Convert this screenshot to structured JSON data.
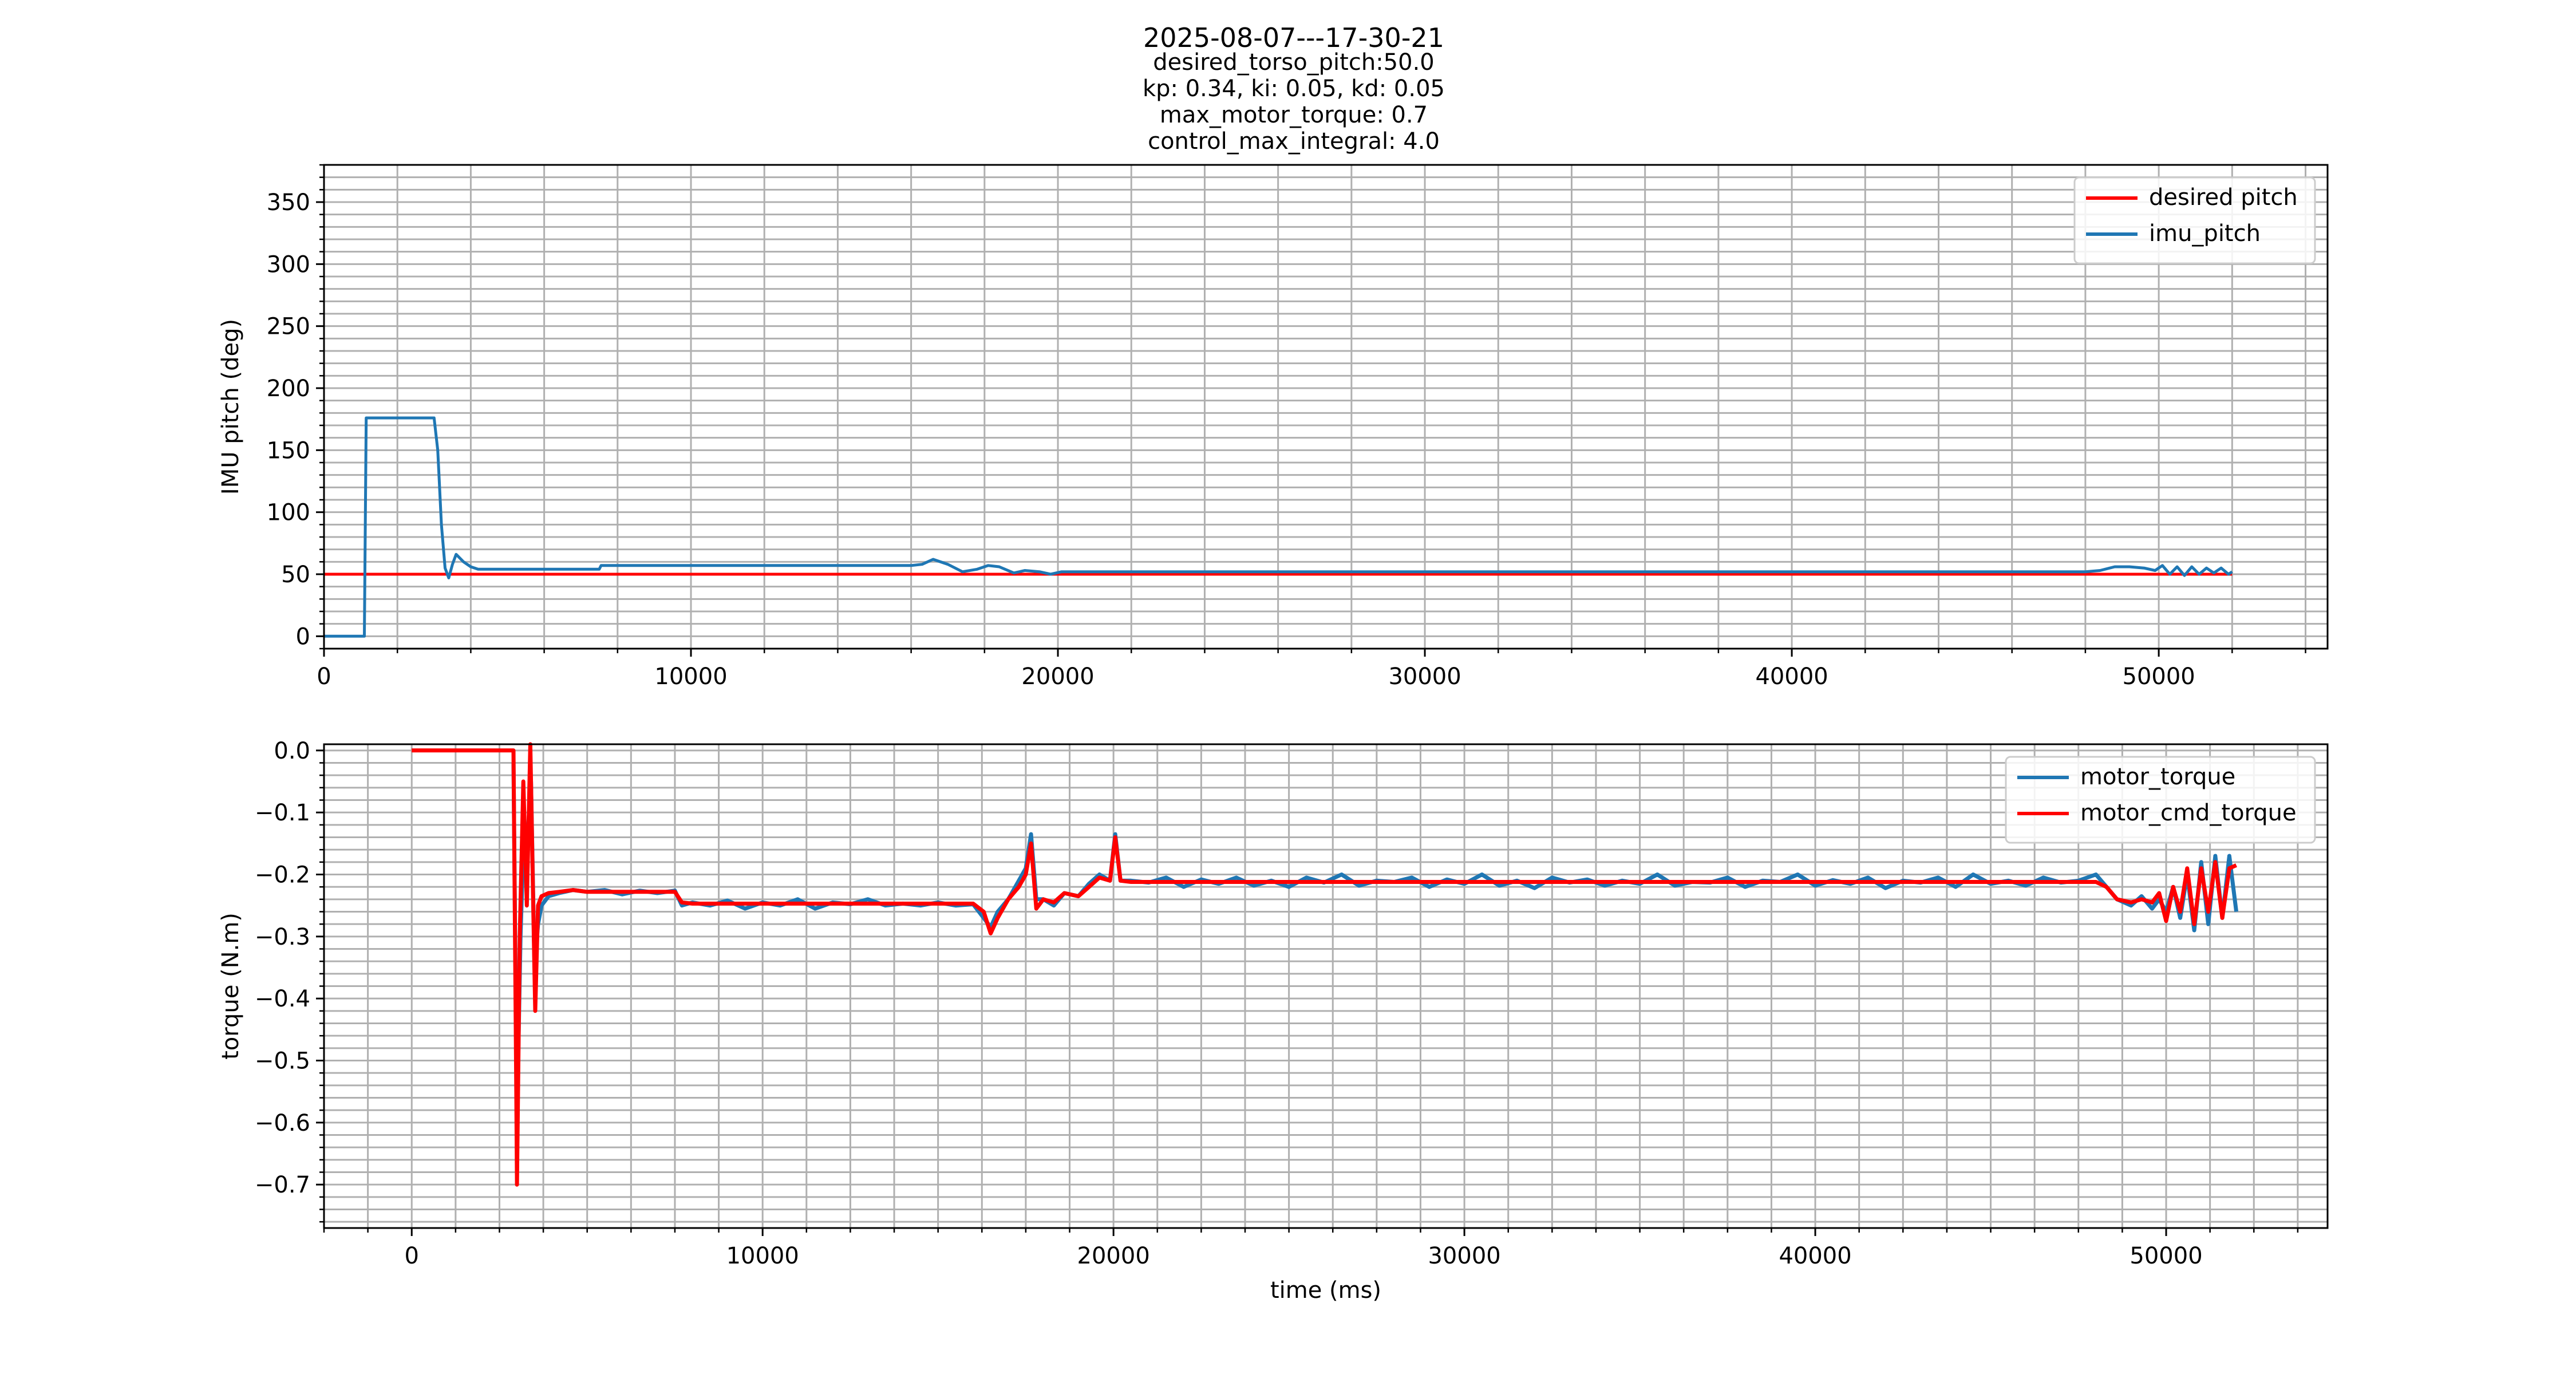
{
  "title": "2025-08-07---17-30-21",
  "subtitle_lines": [
    "desired_torso_pitch:50.0",
    "kp: 0.34, ki: 0.05, kd: 0.05",
    "max_motor_torque: 0.7",
    "control_max_integral: 4.0"
  ],
  "colors": {
    "blue": "#1f77b4",
    "red": "#ff0000",
    "grid": "#b0b0b0"
  },
  "chart_data": [
    {
      "type": "line",
      "ylabel": "IMU pitch (deg)",
      "xlabel": "",
      "xlim": [
        0,
        54600
      ],
      "ylim": [
        -10,
        380
      ],
      "grid": true,
      "minor_grid": true,
      "legend_placement": "top-right",
      "xticks": [
        0,
        10000,
        20000,
        30000,
        40000,
        50000
      ],
      "yticks": [
        0,
        50,
        100,
        150,
        200,
        250,
        300,
        350
      ],
      "series": [
        {
          "name": "desired pitch",
          "color": "#ff0000",
          "x": [
            0,
            52000
          ],
          "y": [
            50,
            50
          ]
        },
        {
          "name": "imu_pitch",
          "color": "#1f77b4",
          "x": [
            0,
            1100,
            1150,
            3000,
            3100,
            3200,
            3300,
            3400,
            3500,
            3600,
            3700,
            3800,
            4000,
            4200,
            7500,
            7550,
            16000,
            16300,
            16600,
            17000,
            17400,
            17800,
            18100,
            18400,
            18800,
            19100,
            19500,
            19800,
            20100,
            20300,
            48000,
            48400,
            48800,
            49200,
            49600,
            49900,
            50100,
            50300,
            50500,
            50700,
            50900,
            51100,
            51300,
            51500,
            51700,
            51900,
            52000
          ],
          "y": [
            0,
            0,
            176,
            176,
            150,
            90,
            55,
            47,
            58,
            66,
            63,
            60,
            56,
            54,
            54,
            57,
            57,
            58,
            62,
            58,
            52,
            54,
            57,
            56,
            51,
            53,
            52,
            50,
            52,
            52,
            52,
            53,
            56,
            56,
            55,
            53,
            57,
            50,
            56,
            49,
            56,
            50,
            55,
            51,
            55,
            50,
            52
          ]
        }
      ]
    },
    {
      "type": "line",
      "ylabel": "torque (N.m)",
      "xlabel": "time (ms)",
      "xlim": [
        -2500,
        54600
      ],
      "ylim": [
        -0.77,
        0.01
      ],
      "grid": true,
      "minor_grid": true,
      "legend_placement": "top-right",
      "xticks": [
        0,
        10000,
        20000,
        30000,
        40000,
        50000
      ],
      "yticks": [
        0.0,
        -0.1,
        -0.2,
        -0.3,
        -0.4,
        -0.5,
        -0.6,
        -0.7
      ],
      "series": [
        {
          "name": "motor_torque",
          "color": "#1f77b4",
          "x": [
            2900,
            3000,
            3100,
            3200,
            3300,
            3400,
            3500,
            3600,
            3700,
            3900,
            4200,
            4600,
            5000,
            5500,
            6000,
            6500,
            7000,
            7500,
            7700,
            8000,
            8500,
            9000,
            9500,
            10000,
            10500,
            11000,
            11500,
            12000,
            12500,
            13000,
            13500,
            14000,
            14500,
            15000,
            15500,
            16000,
            16300,
            16500,
            16700,
            17000,
            17300,
            17500,
            17650,
            17800,
            18000,
            18300,
            18600,
            19000,
            19300,
            19600,
            19900,
            20050,
            20200,
            20500,
            21000,
            21500,
            22000,
            22500,
            23000,
            23500,
            24000,
            24500,
            25000,
            25500,
            26000,
            26500,
            27000,
            27500,
            28000,
            28500,
            29000,
            29500,
            30000,
            30500,
            31000,
            31500,
            32000,
            32500,
            33000,
            33500,
            34000,
            34500,
            35000,
            35500,
            36000,
            36500,
            37000,
            37500,
            38000,
            38500,
            39000,
            39500,
            40000,
            40500,
            41000,
            41500,
            42000,
            42500,
            43000,
            43500,
            44000,
            44500,
            45000,
            45500,
            46000,
            46500,
            47000,
            47500,
            48000,
            48300,
            48600,
            49000,
            49300,
            49600,
            49800,
            50000,
            50200,
            50400,
            50600,
            50800,
            51000,
            51200,
            51400,
            51600,
            51800,
            52000
          ],
          "y": [
            -0.02,
            -0.6,
            -0.3,
            -0.12,
            -0.14,
            -0.05,
            -0.35,
            -0.28,
            -0.25,
            -0.235,
            -0.23,
            -0.225,
            -0.228,
            -0.225,
            -0.232,
            -0.226,
            -0.23,
            -0.226,
            -0.25,
            -0.245,
            -0.25,
            -0.242,
            -0.255,
            -0.245,
            -0.25,
            -0.24,
            -0.255,
            -0.245,
            -0.248,
            -0.24,
            -0.25,
            -0.247,
            -0.25,
            -0.245,
            -0.25,
            -0.248,
            -0.27,
            -0.285,
            -0.26,
            -0.24,
            -0.21,
            -0.19,
            -0.135,
            -0.24,
            -0.24,
            -0.25,
            -0.23,
            -0.235,
            -0.215,
            -0.2,
            -0.21,
            -0.135,
            -0.21,
            -0.21,
            -0.213,
            -0.205,
            -0.22,
            -0.208,
            -0.215,
            -0.205,
            -0.218,
            -0.21,
            -0.22,
            -0.205,
            -0.213,
            -0.2,
            -0.218,
            -0.21,
            -0.212,
            -0.205,
            -0.22,
            -0.208,
            -0.215,
            -0.2,
            -0.218,
            -0.21,
            -0.222,
            -0.205,
            -0.213,
            -0.208,
            -0.218,
            -0.21,
            -0.215,
            -0.2,
            -0.218,
            -0.212,
            -0.213,
            -0.205,
            -0.22,
            -0.21,
            -0.212,
            -0.2,
            -0.218,
            -0.209,
            -0.215,
            -0.205,
            -0.222,
            -0.21,
            -0.213,
            -0.205,
            -0.22,
            -0.2,
            -0.215,
            -0.21,
            -0.218,
            -0.205,
            -0.213,
            -0.21,
            -0.2,
            -0.22,
            -0.24,
            -0.25,
            -0.235,
            -0.255,
            -0.24,
            -0.26,
            -0.22,
            -0.27,
            -0.2,
            -0.29,
            -0.18,
            -0.28,
            -0.17,
            -0.27,
            -0.17,
            -0.26
          ]
        },
        {
          "name": "motor_cmd_torque",
          "color": "#ff0000",
          "x": [
            0,
            2900,
            2980,
            3000,
            3080,
            3180,
            3280,
            3380,
            3480,
            3520,
            3600,
            3700,
            3900,
            4200,
            4600,
            5000,
            5500,
            6000,
            6500,
            7000,
            7500,
            7700,
            8000,
            8500,
            9000,
            10000,
            11000,
            12000,
            13000,
            14000,
            15000,
            16000,
            16300,
            16500,
            16700,
            17000,
            17300,
            17500,
            17650,
            17800,
            18000,
            18300,
            18600,
            19000,
            19300,
            19600,
            19900,
            20050,
            20200,
            20500,
            21000,
            22000,
            24000,
            26000,
            28000,
            30000,
            32000,
            34000,
            36000,
            38000,
            40000,
            42000,
            44000,
            46000,
            48000,
            48300,
            48600,
            49000,
            49300,
            49600,
            49800,
            50000,
            50200,
            50400,
            50600,
            50800,
            51000,
            51200,
            51400,
            51600,
            51800,
            52000
          ],
          "y": [
            0,
            0,
            -0.55,
            -0.7,
            -0.3,
            -0.05,
            -0.25,
            0.01,
            -0.3,
            -0.42,
            -0.25,
            -0.235,
            -0.23,
            -0.228,
            -0.225,
            -0.228,
            -0.228,
            -0.228,
            -0.228,
            -0.228,
            -0.228,
            -0.245,
            -0.247,
            -0.247,
            -0.247,
            -0.247,
            -0.247,
            -0.247,
            -0.247,
            -0.247,
            -0.247,
            -0.247,
            -0.26,
            -0.295,
            -0.27,
            -0.24,
            -0.22,
            -0.2,
            -0.15,
            -0.255,
            -0.24,
            -0.245,
            -0.23,
            -0.235,
            -0.22,
            -0.205,
            -0.21,
            -0.14,
            -0.21,
            -0.212,
            -0.212,
            -0.212,
            -0.212,
            -0.212,
            -0.212,
            -0.212,
            -0.212,
            -0.212,
            -0.212,
            -0.212,
            -0.212,
            -0.212,
            -0.212,
            -0.212,
            -0.212,
            -0.22,
            -0.24,
            -0.245,
            -0.24,
            -0.245,
            -0.23,
            -0.275,
            -0.22,
            -0.26,
            -0.19,
            -0.28,
            -0.19,
            -0.26,
            -0.18,
            -0.27,
            -0.19,
            -0.185
          ]
        }
      ]
    }
  ]
}
